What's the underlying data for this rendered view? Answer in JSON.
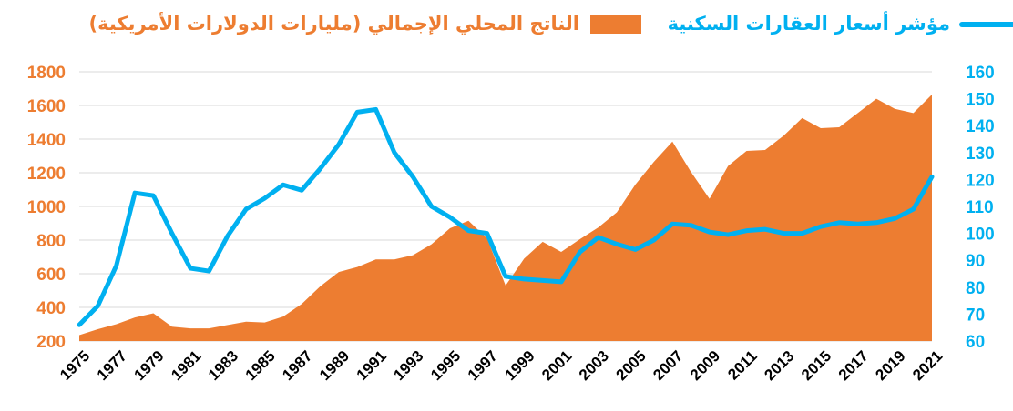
{
  "chart_data": {
    "type": "area+line",
    "legend": {
      "line_label": "مؤشر أسعار العقارات السكنية",
      "area_label": "الناتج المحلي الإجمالي (مليارات الدولارات الأمريكية)",
      "position": "top"
    },
    "colors": {
      "area": "#ED7D31",
      "line": "#00B0F0",
      "left_axis_text": "#ED7D31",
      "right_axis_text": "#00B0F0",
      "grid": "#D9D9D9",
      "x_axis_text": "#000000"
    },
    "left_axis": {
      "min": 200,
      "max": 1800,
      "step": 200,
      "ticks": [
        "200",
        "400",
        "600",
        "800",
        "1000",
        "1200",
        "1400",
        "1600",
        "1800"
      ]
    },
    "right_axis": {
      "min": 60,
      "max": 160,
      "step": 10,
      "ticks": [
        "60",
        "70",
        "80",
        "90",
        "100",
        "110",
        "120",
        "130",
        "140",
        "150",
        "160"
      ]
    },
    "x_tick_labels": [
      "1975",
      "1977",
      "1979",
      "1981",
      "1983",
      "1985",
      "1987",
      "1989",
      "1991",
      "1993",
      "1995",
      "1997",
      "1999",
      "2001",
      "2003",
      "2005",
      "2007",
      "2009",
      "2011",
      "2013",
      "2015",
      "2017",
      "2019",
      "2021"
    ],
    "years": [
      1975,
      1976,
      1977,
      1978,
      1979,
      1980,
      1981,
      1982,
      1983,
      1984,
      1985,
      1986,
      1987,
      1988,
      1989,
      1990,
      1991,
      1992,
      1993,
      1994,
      1995,
      1996,
      1997,
      1998,
      1999,
      2000,
      2001,
      2002,
      2003,
      2004,
      2005,
      2006,
      2007,
      2008,
      2009,
      2010,
      2011,
      2012,
      2013,
      2014,
      2015,
      2016,
      2017,
      2018,
      2019,
      2020,
      2021
    ],
    "series": [
      {
        "name": "الناتج المحلي الإجمالي (مليارات الدولارات الأمريكية)",
        "axis": "left",
        "type": "area",
        "values": [
          235,
          270,
          300,
          340,
          365,
          285,
          275,
          275,
          295,
          315,
          310,
          345,
          420,
          525,
          610,
          640,
          685,
          685,
          710,
          775,
          870,
          915,
          810,
          530,
          690,
          790,
          730,
          805,
          875,
          965,
          1130,
          1265,
          1385,
          1205,
          1045,
          1240,
          1330,
          1335,
          1420,
          1525,
          1465,
          1470,
          1555,
          1640,
          1580,
          1555,
          1665
        ]
      },
      {
        "name": "مؤشر أسعار العقارات السكنية",
        "axis": "right",
        "type": "line",
        "values": [
          66,
          73,
          88,
          115,
          114,
          100,
          87,
          86,
          99,
          109,
          113,
          118,
          116,
          124,
          133,
          145,
          146,
          130,
          121,
          110,
          106,
          101,
          100,
          84,
          83,
          82.5,
          82,
          93,
          98.5,
          96,
          94,
          97.5,
          103.5,
          103,
          100.5,
          99.5,
          101,
          101.5,
          100,
          100,
          102.5,
          104,
          103.5,
          104,
          105.5,
          109,
          121
        ]
      }
    ]
  }
}
